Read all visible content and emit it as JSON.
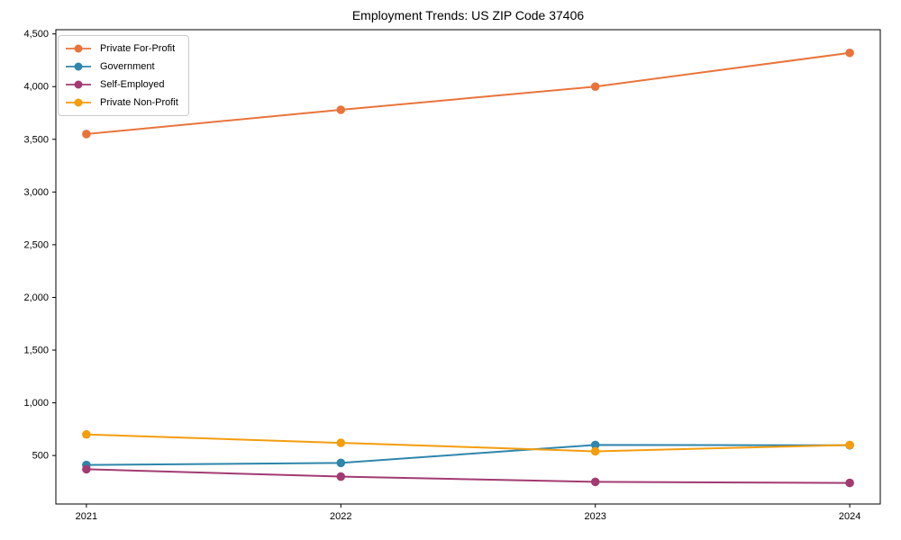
{
  "chart_data": {
    "type": "line",
    "title": "Employment Trends: US ZIP Code 37406",
    "x": [
      2021,
      2022,
      2023,
      2024
    ],
    "xticklabels": [
      "2021",
      "2022",
      "2023",
      "2024"
    ],
    "series": [
      {
        "name": "Private For-Profit",
        "color": "#E8743B",
        "values": [
          3550,
          3780,
          4000,
          4320
        ]
      },
      {
        "name": "Government",
        "color": "#2E86AB",
        "values": [
          410,
          430,
          600,
          597
        ]
      },
      {
        "name": "Self-Employed",
        "color": "#A23B72",
        "values": [
          370,
          300,
          250,
          240
        ]
      },
      {
        "name": "Private Non-Profit",
        "color": "#F49D0D",
        "values": [
          700,
          620,
          540,
          600
        ]
      }
    ],
    "yticks": [
      500,
      1000,
      1500,
      2000,
      2500,
      3000,
      3500,
      4000,
      4500
    ],
    "yticklabels": [
      "500",
      "1,000",
      "1,500",
      "2,000",
      "2,500",
      "3,000",
      "3,500",
      "4,000",
      "4,500"
    ],
    "ylim": [
      40,
      4540
    ],
    "xlim": [
      2020.88,
      2024.12
    ],
    "xlabel": "",
    "ylabel": "",
    "grid": false,
    "legend_position": "upper-left",
    "marker": "circle",
    "line_width": 2,
    "marker_radius": 4.8,
    "spine_color": "#000000",
    "background_color": "#ffffff"
  }
}
